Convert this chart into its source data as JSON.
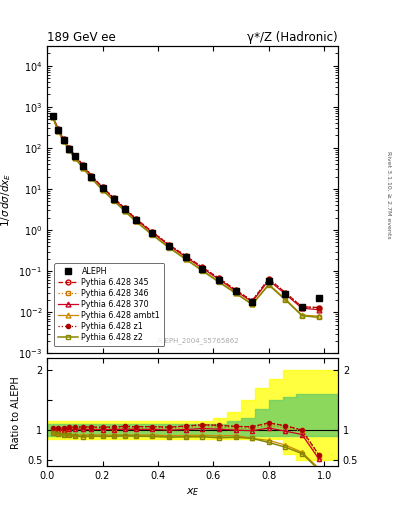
{
  "title_left": "189 GeV ee",
  "title_right": "γ*/Z (Hadronic)",
  "right_label": "Rivet 3.1.10, ≥ 2.7M events",
  "watermark": "ALEPH_2004_S5765862",
  "ylabel_main": "1/σ dσ/dx_E",
  "ylabel_ratio": "Ratio to ALEPH",
  "xlabel": "x_E",
  "xlim": [
    0.0,
    1.05
  ],
  "ylim_main": [
    0.001,
    30000.0
  ],
  "ylim_ratio": [
    0.4,
    2.2
  ],
  "data_x": [
    0.02,
    0.04,
    0.06,
    0.08,
    0.1,
    0.13,
    0.16,
    0.2,
    0.24,
    0.28,
    0.32,
    0.38,
    0.44,
    0.5,
    0.56,
    0.62,
    0.68,
    0.74,
    0.8,
    0.86,
    0.92,
    0.98
  ],
  "data_y": [
    580,
    270,
    155,
    95,
    62,
    36,
    20,
    10.5,
    5.8,
    3.2,
    1.8,
    0.85,
    0.42,
    0.22,
    0.115,
    0.062,
    0.033,
    0.018,
    0.058,
    0.028,
    0.0135,
    0.022
  ],
  "p345_y": [
    600,
    280,
    160,
    100,
    65,
    38,
    21,
    11.0,
    6.1,
    3.4,
    1.9,
    0.9,
    0.44,
    0.235,
    0.125,
    0.067,
    0.035,
    0.019,
    0.065,
    0.03,
    0.0135,
    0.013
  ],
  "p346_y": [
    595,
    275,
    158,
    98,
    64,
    37,
    20.5,
    10.8,
    5.95,
    3.3,
    1.85,
    0.88,
    0.43,
    0.228,
    0.122,
    0.065,
    0.034,
    0.0185,
    0.063,
    0.029,
    0.0132,
    0.012
  ],
  "p370_y": [
    590,
    270,
    156,
    96,
    63,
    36.5,
    20.2,
    10.6,
    5.85,
    3.25,
    1.82,
    0.86,
    0.42,
    0.222,
    0.118,
    0.063,
    0.033,
    0.0178,
    0.06,
    0.0275,
    0.0125,
    0.0115
  ],
  "pambt_y": [
    560,
    255,
    145,
    88,
    57,
    33,
    18.5,
    9.6,
    5.3,
    2.95,
    1.65,
    0.78,
    0.38,
    0.2,
    0.105,
    0.056,
    0.03,
    0.0155,
    0.048,
    0.021,
    0.0085,
    0.008
  ],
  "pz1_y": [
    600,
    280,
    160,
    100,
    65,
    38,
    21,
    11.0,
    6.1,
    3.4,
    1.9,
    0.9,
    0.44,
    0.235,
    0.125,
    0.067,
    0.035,
    0.019,
    0.065,
    0.03,
    0.0135,
    0.013
  ],
  "pz2_y": [
    555,
    252,
    143,
    87,
    56,
    32,
    18,
    9.4,
    5.2,
    2.9,
    1.62,
    0.76,
    0.37,
    0.195,
    0.102,
    0.054,
    0.029,
    0.0155,
    0.046,
    0.02,
    0.0082,
    0.0075
  ],
  "band_x": [
    0.0,
    0.05,
    0.1,
    0.2,
    0.3,
    0.4,
    0.5,
    0.6,
    0.65,
    0.7,
    0.75,
    0.8,
    0.85,
    0.9,
    1.0,
    1.05
  ],
  "band_green_lo": [
    0.9,
    0.9,
    0.9,
    0.9,
    0.9,
    0.9,
    0.9,
    0.9,
    0.9,
    0.9,
    0.9,
    0.9,
    0.9,
    0.9,
    0.9,
    0.9
  ],
  "band_green_hi": [
    1.1,
    1.1,
    1.1,
    1.1,
    1.1,
    1.1,
    1.1,
    1.1,
    1.15,
    1.2,
    1.35,
    1.5,
    1.55,
    1.6,
    1.6,
    1.6
  ],
  "band_yellow_lo": [
    0.85,
    0.85,
    0.85,
    0.85,
    0.85,
    0.85,
    0.85,
    0.85,
    0.85,
    0.85,
    0.85,
    0.85,
    0.6,
    0.5,
    0.5,
    0.5
  ],
  "band_yellow_hi": [
    1.15,
    1.15,
    1.15,
    1.15,
    1.15,
    1.15,
    1.15,
    1.2,
    1.3,
    1.5,
    1.7,
    1.85,
    2.0,
    2.0,
    2.0,
    2.0
  ],
  "color_345": "#cc0000",
  "color_346": "#cc7700",
  "color_370": "#cc0022",
  "color_ambt": "#cc8800",
  "color_z1": "#aa0000",
  "color_z2": "#888800",
  "color_data": "#000000",
  "legend_entries": [
    "ALEPH",
    "Pythia 6.428 345",
    "Pythia 6.428 346",
    "Pythia 6.428 370",
    "Pythia 6.428 ambt1",
    "Pythia 6.428 z1",
    "Pythia 6.428 z2"
  ]
}
